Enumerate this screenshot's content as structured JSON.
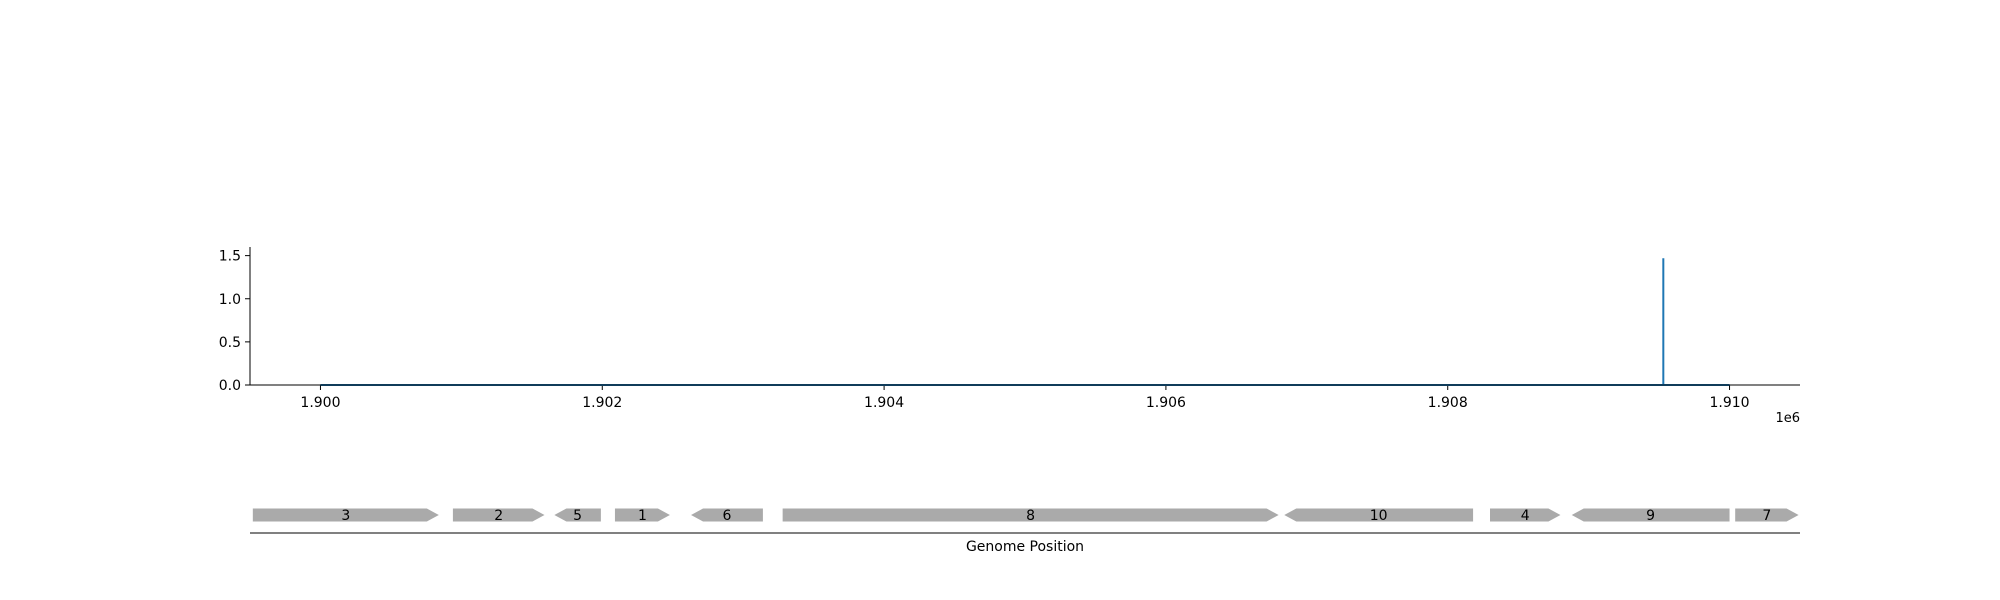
{
  "chart_data": [
    {
      "type": "line",
      "title": "",
      "xlabel": "",
      "ylabel": "",
      "x_offset_label": "1e6",
      "xlim": [
        1899500,
        1910500
      ],
      "ylim": [
        0,
        1.6
      ],
      "xticks": [
        1900000,
        1902000,
        1904000,
        1906000,
        1908000,
        1910000
      ],
      "xtick_labels": [
        "1.900",
        "1.902",
        "1.904",
        "1.906",
        "1.908",
        "1.910"
      ],
      "yticks": [
        0.0,
        0.5,
        1.0,
        1.5
      ],
      "ytick_labels": [
        "0.0",
        "0.5",
        "1.0",
        "1.5"
      ],
      "grid": false,
      "series": [
        {
          "color": "#1f77b4",
          "x": [
            1900000,
            1909530,
            1909530,
            1909530,
            1910000
          ],
          "y": [
            0,
            0,
            1.47,
            0,
            0
          ]
        }
      ]
    },
    {
      "type": "gene_map",
      "xlabel": "Genome Position",
      "xlim": [
        1899500,
        1910500
      ],
      "color": "#aaaaaa",
      "genes": [
        {
          "label": "3",
          "start": 1899520,
          "end": 1900840,
          "strand": "+"
        },
        {
          "label": "2",
          "start": 1900940,
          "end": 1901590,
          "strand": "+"
        },
        {
          "label": "5",
          "start": 1901660,
          "end": 1901990,
          "strand": "-"
        },
        {
          "label": "1",
          "start": 1902090,
          "end": 1902480,
          "strand": "+"
        },
        {
          "label": "6",
          "start": 1902630,
          "end": 1903140,
          "strand": "-"
        },
        {
          "label": "8",
          "start": 1903280,
          "end": 1906800,
          "strand": "+"
        },
        {
          "label": "10",
          "start": 1906840,
          "end": 1908180,
          "strand": "-"
        },
        {
          "label": "4",
          "start": 1908300,
          "end": 1908800,
          "strand": "+"
        },
        {
          "label": "9",
          "start": 1908880,
          "end": 1910000,
          "strand": "-"
        },
        {
          "label": "7",
          "start": 1910040,
          "end": 1910490,
          "strand": "+"
        }
      ]
    }
  ]
}
